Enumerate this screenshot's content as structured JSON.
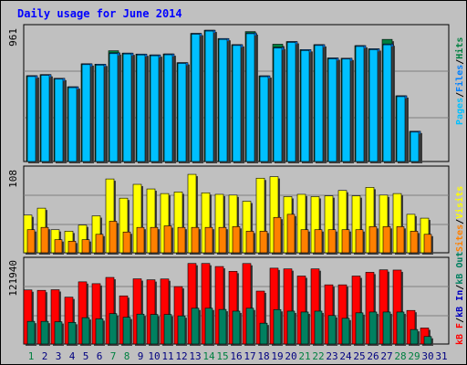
{
  "title": "Daily usage for June 2014",
  "colors": {
    "hits": "#008040",
    "files": "#0080ff",
    "pages": "#00c0ff",
    "visits": "#ffff00",
    "sites": "#ff8000",
    "kb_in": "#ff0000",
    "kb_out": "#008060",
    "weekend": "#008040",
    "weekday": "#000080",
    "plot_bg": "#c0c0c0",
    "title": "#0000ff"
  },
  "chart_data": [
    {
      "type": "bar",
      "title": "Daily usage for June 2014",
      "axis_max_label": "961",
      "ylim": [
        0,
        961
      ],
      "legend": [
        {
          "text": "Pages",
          "color": "#00c0ff"
        },
        {
          "text": "Files",
          "color": "#0080ff"
        },
        {
          "text": "Hits",
          "color": "#008040"
        }
      ],
      "legend_sep": "/",
      "categories": [
        "1",
        "2",
        "3",
        "4",
        "5",
        "6",
        "7",
        "8",
        "9",
        "10",
        "11",
        "12",
        "13",
        "14",
        "15",
        "16",
        "17",
        "18",
        "19",
        "20",
        "21",
        "22",
        "23",
        "24",
        "25",
        "26",
        "27",
        "28",
        "29",
        "30",
        "31"
      ],
      "series": [
        {
          "name": "Hits",
          "values": [
            619,
            627,
            600,
            539,
            705,
            702,
            799,
            782,
            775,
            769,
            776,
            713,
            924,
            947,
            887,
            843,
            937,
            618,
            846,
            865,
            807,
            843,
            747,
            745,
            836,
            813,
            881,
            474,
            218,
            0,
            0
          ]
        },
        {
          "name": "Files",
          "values": [
            619,
            627,
            600,
            539,
            705,
            702,
            784,
            782,
            775,
            769,
            776,
            713,
            924,
            947,
            887,
            843,
            928,
            618,
            824,
            865,
            807,
            843,
            747,
            745,
            836,
            813,
            848,
            474,
            218,
            0,
            0
          ]
        },
        {
          "name": "Pages",
          "values": [
            613,
            621,
            594,
            533,
            699,
            696,
            778,
            776,
            769,
            763,
            770,
            707,
            918,
            941,
            881,
            837,
            922,
            612,
            818,
            859,
            801,
            837,
            741,
            739,
            830,
            807,
            842,
            468,
            212,
            0,
            0
          ]
        }
      ]
    },
    {
      "type": "bar",
      "axis_max_label": "108",
      "ylim": [
        0,
        108
      ],
      "legend": [
        {
          "text": "Sites",
          "color": "#ff8000"
        },
        {
          "text": "Visits",
          "color": "#ffff00"
        }
      ],
      "legend_sep": "/",
      "categories": [
        "1",
        "2",
        "3",
        "4",
        "5",
        "6",
        "7",
        "8",
        "9",
        "10",
        "11",
        "12",
        "13",
        "14",
        "15",
        "16",
        "17",
        "18",
        "19",
        "20",
        "21",
        "22",
        "23",
        "24",
        "25",
        "26",
        "27",
        "28",
        "29",
        "30",
        "31"
      ],
      "series": [
        {
          "name": "Visits",
          "values": [
            49,
            58,
            30,
            28,
            36,
            48,
            96,
            71,
            89,
            83,
            77,
            79,
            102,
            78,
            76,
            75,
            67,
            97,
            99,
            73,
            76,
            73,
            74,
            81,
            74,
            85,
            75,
            77,
            50,
            45,
            0
          ]
        },
        {
          "name": "Sites",
          "values": [
            30,
            33,
            17,
            15,
            17,
            24,
            41,
            27,
            33,
            33,
            35,
            33,
            33,
            33,
            33,
            34,
            28,
            28,
            46,
            50,
            30,
            30,
            30,
            30,
            30,
            34,
            34,
            34,
            28,
            24,
            0
          ]
        }
      ]
    },
    {
      "type": "bar",
      "axis_max_label": "121940",
      "ylim": [
        0,
        121940
      ],
      "legend": [
        {
          "text": "kB F",
          "color": "#ff0000"
        },
        {
          "text": "kB In",
          "color": "#0000c0"
        },
        {
          "text": "kB Out",
          "color": "#008060"
        }
      ],
      "legend_sep": "/",
      "categories": [
        "1",
        "2",
        "3",
        "4",
        "5",
        "6",
        "7",
        "8",
        "9",
        "10",
        "11",
        "12",
        "13",
        "14",
        "15",
        "16",
        "17",
        "18",
        "19",
        "20",
        "21",
        "22",
        "23",
        "24",
        "25",
        "26",
        "27",
        "28",
        "29",
        "30",
        "31"
      ],
      "series": [
        {
          "name": "kB F",
          "values": [
            79400,
            78800,
            79700,
            68800,
            91300,
            88600,
            97800,
            70700,
            95700,
            94300,
            95500,
            84300,
            118300,
            118300,
            113800,
            106700,
            118200,
            77700,
            111400,
            110300,
            99800,
            110300,
            86900,
            86900,
            99800,
            105300,
            108900,
            108600,
            49300,
            23500,
            0
          ]
        },
        {
          "name": "kB Out",
          "values": [
            33300,
            33300,
            32700,
            31700,
            38700,
            37000,
            44600,
            39300,
            43900,
            43400,
            43400,
            41300,
            52600,
            52600,
            50800,
            48300,
            52600,
            30600,
            50600,
            48300,
            47000,
            48300,
            41800,
            37800,
            45800,
            47000,
            47000,
            47000,
            21300,
            11000,
            0
          ]
        }
      ]
    }
  ],
  "days": [
    {
      "label": "1",
      "weekend": true
    },
    {
      "label": "2",
      "weekend": false
    },
    {
      "label": "3",
      "weekend": false
    },
    {
      "label": "4",
      "weekend": false
    },
    {
      "label": "5",
      "weekend": false
    },
    {
      "label": "6",
      "weekend": false
    },
    {
      "label": "7",
      "weekend": true
    },
    {
      "label": "8",
      "weekend": true
    },
    {
      "label": "9",
      "weekend": false
    },
    {
      "label": "10",
      "weekend": false
    },
    {
      "label": "11",
      "weekend": false
    },
    {
      "label": "12",
      "weekend": false
    },
    {
      "label": "13",
      "weekend": false
    },
    {
      "label": "14",
      "weekend": true
    },
    {
      "label": "15",
      "weekend": true
    },
    {
      "label": "16",
      "weekend": false
    },
    {
      "label": "17",
      "weekend": false
    },
    {
      "label": "18",
      "weekend": false
    },
    {
      "label": "19",
      "weekend": false
    },
    {
      "label": "20",
      "weekend": false
    },
    {
      "label": "21",
      "weekend": true
    },
    {
      "label": "22",
      "weekend": true
    },
    {
      "label": "23",
      "weekend": false
    },
    {
      "label": "24",
      "weekend": false
    },
    {
      "label": "25",
      "weekend": false
    },
    {
      "label": "26",
      "weekend": false
    },
    {
      "label": "27",
      "weekend": false
    },
    {
      "label": "28",
      "weekend": true
    },
    {
      "label": "29",
      "weekend": true
    },
    {
      "label": "30",
      "weekend": false
    },
    {
      "label": "31",
      "weekend": false
    }
  ]
}
